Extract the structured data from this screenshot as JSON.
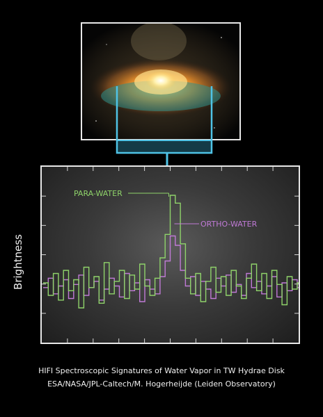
{
  "chart_data": {
    "type": "line",
    "title": "",
    "xlabel": "",
    "ylabel": "Brightness",
    "grid": false,
    "ylim": [
      0,
      100
    ],
    "x": [
      0,
      2,
      4,
      6,
      8,
      10,
      12,
      14,
      16,
      18,
      20,
      22,
      24,
      26,
      28,
      30,
      32,
      34,
      36,
      38,
      40,
      42,
      44,
      46,
      48,
      50,
      52,
      54,
      56,
      58,
      60,
      62,
      64,
      66,
      68,
      70,
      72,
      74,
      76,
      78,
      80,
      82,
      84,
      86,
      88,
      90,
      92,
      94,
      96,
      98,
      100
    ],
    "series": [
      {
        "name": "PARA-WATER",
        "color": "#8fd36a",
        "values": [
          32,
          24,
          38,
          21,
          40,
          27,
          34,
          16,
          42,
          29,
          36,
          19,
          45,
          25,
          33,
          40,
          22,
          37,
          28,
          44,
          30,
          24,
          35,
          48,
          63,
          88,
          83,
          57,
          35,
          25,
          38,
          20,
          33,
          42,
          26,
          36,
          24,
          40,
          30,
          22,
          35,
          44,
          27,
          38,
          22,
          40,
          31,
          18,
          36,
          28,
          32
        ]
      },
      {
        "name": "ORTHO-WATER",
        "color": "#c07ad6",
        "values": [
          29,
          35,
          25,
          30,
          34,
          22,
          31,
          37,
          24,
          29,
          33,
          21,
          28,
          35,
          30,
          23,
          38,
          27,
          32,
          20,
          34,
          28,
          25,
          36,
          46,
          62,
          56,
          40,
          30,
          36,
          24,
          33,
          28,
          22,
          35,
          30,
          37,
          26,
          31,
          24,
          38,
          29,
          33,
          25,
          30,
          36,
          23,
          32,
          27,
          34,
          29
        ]
      }
    ],
    "annotations": [
      "PARA-WATER",
      "ORTHO-WATER"
    ]
  },
  "caption": {
    "title": "HIFI Spectroscopic Signatures of Water Vapor in TW Hydrae Disk",
    "credit": "ESA/NASA/JPL-Caltech/M. Hogerheijde (Leiden Observatory)"
  },
  "colors": {
    "background": "#000000",
    "frame": "#e8e8e8",
    "beam": "#4fc3e6",
    "plot_bg": "#3a3a3a"
  }
}
